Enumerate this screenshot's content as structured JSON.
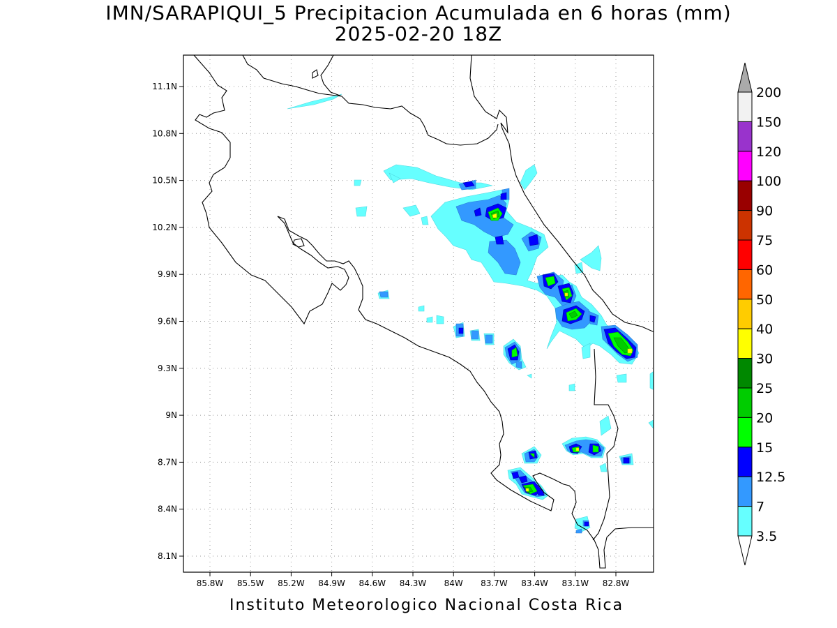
{
  "title_line1": "IMN/SARAPIQUI_5 Precipitacion Acumulada en 6 horas (mm)",
  "title_line2": "2025-02-20 18Z",
  "footer": "Instituto Meteorologico Nacional Costa Rica",
  "map": {
    "lon_range": [
      -86.0,
      -82.5
    ],
    "lat_range": [
      8.0,
      11.3
    ],
    "x_ticks": [
      "85.8W",
      "85.5W",
      "85.2W",
      "84.9W",
      "84.6W",
      "84.3W",
      "84W",
      "83.7W",
      "83.4W",
      "83.1W",
      "82.8W"
    ],
    "y_ticks": [
      "11.1N",
      "10.8N",
      "10.5N",
      "10.2N",
      "9.9N",
      "9.6N",
      "9.3N",
      "9N",
      "8.7N",
      "8.4N",
      "8.1N"
    ]
  },
  "colorbar": {
    "levels": [
      "200",
      "150",
      "120",
      "100",
      "90",
      "75",
      "60",
      "50",
      "40",
      "30",
      "25",
      "20",
      "15",
      "12.5",
      "7",
      "3.5"
    ],
    "colors": [
      "#f2f2f2",
      "#9933cc",
      "#ff00ff",
      "#990000",
      "#cc3300",
      "#ff0000",
      "#ff6600",
      "#ffcc00",
      "#ffff00",
      "#008800",
      "#00cc00",
      "#00ff00",
      "#0000ff",
      "#3399ff",
      "#66ffff"
    ],
    "over_color": "#aaaaaa",
    "under_color": "#ffffff"
  },
  "precip_colors": {
    "c3_5": "#66ffff",
    "c7": "#3399ff",
    "c12_5": "#0000ff",
    "c15": "#00ff00",
    "c20": "#00cc00",
    "c30": "#ffff00"
  }
}
